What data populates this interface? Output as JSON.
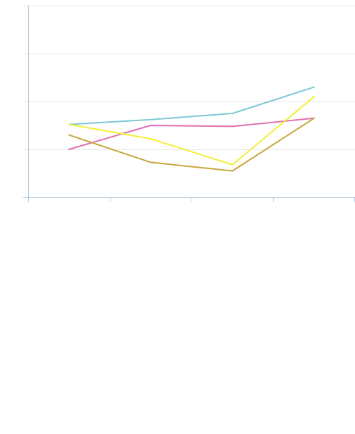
{
  "chart_data": {
    "type": "line",
    "title": "",
    "xlabel": "",
    "ylabel": "",
    "x": [
      1,
      2,
      3,
      4
    ],
    "xlim": [
      0.5,
      4.5
    ],
    "ylim": [
      0,
      4
    ],
    "grid": true,
    "legend": "none",
    "series": [
      {
        "color": "#7ec8d6",
        "values": [
          1.52,
          1.62,
          1.75,
          2.3
        ]
      },
      {
        "color": "#e06fb3",
        "values": [
          1.0,
          1.5,
          1.48,
          1.65
        ]
      },
      {
        "color": "#f2ef38",
        "values": [
          1.52,
          1.22,
          0.68,
          2.1
        ]
      },
      {
        "color": "#c9a63a",
        "values": [
          1.3,
          0.73,
          0.55,
          1.65
        ]
      }
    ]
  }
}
